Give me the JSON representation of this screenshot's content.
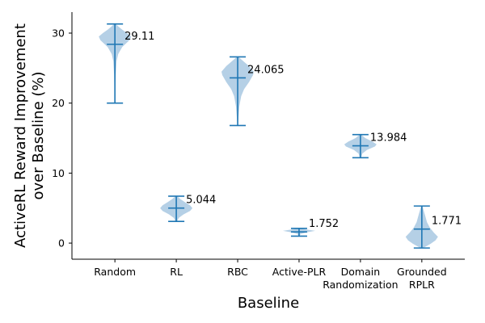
{
  "chart_data": {
    "type": "violin",
    "title": "",
    "xlabel": "Baseline",
    "ylabel": "ActiveRL Reward Improvement\nover Baseline (%)",
    "ylim": [
      -2.3,
      33
    ],
    "yticks": [
      0,
      10,
      20,
      30
    ],
    "categories": [
      {
        "label": "Random",
        "min": 20.0,
        "max": 31.3,
        "mean": 28.4,
        "value_label": "29.11",
        "density": [
          [
            20.0,
            0.02
          ],
          [
            22.0,
            0.03
          ],
          [
            24.0,
            0.05
          ],
          [
            26.0,
            0.1
          ],
          [
            27.0,
            0.2
          ],
          [
            28.0,
            0.45
          ],
          [
            29.0,
            0.9
          ],
          [
            29.5,
            1.0
          ],
          [
            30.0,
            0.75
          ],
          [
            30.5,
            0.45
          ],
          [
            31.0,
            0.18
          ],
          [
            31.3,
            0.05
          ]
        ]
      },
      {
        "label": "RL",
        "min": 3.1,
        "max": 6.7,
        "mean": 5.0,
        "value_label": "5.044",
        "density": [
          [
            3.1,
            0.05
          ],
          [
            3.6,
            0.15
          ],
          [
            4.1,
            0.45
          ],
          [
            4.6,
            0.85
          ],
          [
            5.0,
            1.0
          ],
          [
            5.4,
            0.85
          ],
          [
            5.9,
            0.5
          ],
          [
            6.3,
            0.25
          ],
          [
            6.7,
            0.05
          ]
        ]
      },
      {
        "label": "RBC",
        "min": 16.8,
        "max": 26.6,
        "mean": 23.6,
        "value_label": "24.065",
        "density": [
          [
            16.8,
            0.02
          ],
          [
            18.0,
            0.05
          ],
          [
            19.5,
            0.1
          ],
          [
            21.0,
            0.22
          ],
          [
            22.0,
            0.4
          ],
          [
            23.0,
            0.7
          ],
          [
            24.0,
            0.95
          ],
          [
            24.5,
            1.0
          ],
          [
            25.3,
            0.7
          ],
          [
            26.0,
            0.35
          ],
          [
            26.6,
            0.05
          ]
        ]
      },
      {
        "label": "Active-PLR",
        "min": 1.0,
        "max": 2.1,
        "mean": 1.6,
        "value_label": "1.752",
        "density": [
          [
            1.0,
            0.02
          ],
          [
            1.3,
            0.1
          ],
          [
            1.6,
            0.6
          ],
          [
            1.75,
            1.0
          ],
          [
            1.9,
            0.6
          ],
          [
            2.1,
            0.05
          ]
        ]
      },
      {
        "label": "Domain\nRandomization",
        "min": 12.2,
        "max": 15.5,
        "mean": 13.9,
        "value_label": "13.984",
        "density": [
          [
            12.2,
            0.04
          ],
          [
            12.8,
            0.12
          ],
          [
            13.3,
            0.4
          ],
          [
            13.8,
            0.9
          ],
          [
            14.1,
            1.0
          ],
          [
            14.5,
            0.75
          ],
          [
            15.0,
            0.3
          ],
          [
            15.5,
            0.05
          ]
        ]
      },
      {
        "label": "Grounded\nRPLR",
        "min": -0.7,
        "max": 5.3,
        "mean": 2.0,
        "value_label": "1.771",
        "density": [
          [
            -0.7,
            0.08
          ],
          [
            -0.1,
            0.55
          ],
          [
            0.4,
            0.85
          ],
          [
            0.9,
            1.0
          ],
          [
            1.5,
            0.75
          ],
          [
            2.2,
            0.5
          ],
          [
            3.0,
            0.32
          ],
          [
            4.0,
            0.2
          ],
          [
            4.8,
            0.1
          ],
          [
            5.3,
            0.04
          ]
        ]
      }
    ],
    "colors": {
      "body": "#a8c8e2",
      "lines": "#1f77b4"
    }
  }
}
